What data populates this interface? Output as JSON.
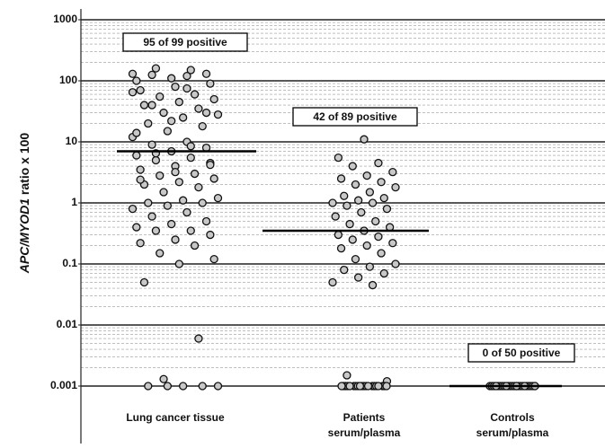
{
  "chart_data": {
    "type": "strip",
    "y_label": [
      "APC/MYOD1",
      "ratio x 100"
    ],
    "categories": [
      [
        "Lung cancer tissue"
      ],
      [
        "Patients",
        "serum/plasma"
      ],
      [
        "Controls",
        "serum/plasma"
      ]
    ],
    "annotations": [
      "95 of 99 positive",
      "42 of 89 positive",
      "0 of 50 positive"
    ],
    "log_y": true,
    "grid": true,
    "minor_grid": true,
    "ylim": [
      0.001,
      1000
    ],
    "yticks": [
      0.001,
      0.01,
      0.1,
      1,
      10,
      100,
      1000
    ],
    "marker_color": "#c8c8c8",
    "medians": [
      7,
      0.35,
      0.001
    ],
    "points": [
      [
        130,
        120,
        125,
        130,
        110,
        100,
        150,
        160,
        90,
        80,
        70,
        60,
        55,
        50,
        45,
        40,
        35,
        30,
        28,
        25,
        20,
        18,
        15,
        12,
        10,
        9,
        8,
        7,
        6,
        5.5,
        5,
        4.5,
        4,
        3.5,
        3,
        2.8,
        2.5,
        2.2,
        2,
        1.8,
        1.5,
        1.2,
        1.1,
        1,
        1,
        0.9,
        0.8,
        0.7,
        0.6,
        0.5,
        0.45,
        0.4,
        0.35,
        0.35,
        0.3,
        0.25,
        0.22,
        0.2,
        0.15,
        0.12,
        0.1,
        0.05,
        0.006,
        0.0013,
        0.001,
        0.001,
        0.001,
        0.001,
        0.001,
        65,
        75,
        40,
        30,
        22,
        14,
        8.5,
        6.5,
        4.2,
        3.2,
        2.4
      ],
      [
        11,
        5.5,
        4.5,
        4,
        3.2,
        2.8,
        2.5,
        2.2,
        2,
        1.8,
        1.5,
        1.3,
        1.2,
        1.1,
        1,
        1,
        0.9,
        0.8,
        0.7,
        0.6,
        0.5,
        0.45,
        0.4,
        0.35,
        0.3,
        0.28,
        0.25,
        0.22,
        0.2,
        0.18,
        0.15,
        0.12,
        0.1,
        0.09,
        0.08,
        0.07,
        0.06,
        0.05,
        0.045,
        0.0015,
        0.0012,
        0.001,
        0.001,
        0.001,
        0.001,
        0.001,
        0.001,
        0.001,
        0.001,
        0.001,
        0.001,
        0.001,
        0.001,
        0.001,
        0.001,
        0.001,
        0.001,
        0.001,
        0.001,
        0.001,
        0.001
      ],
      [
        0.001,
        0.001,
        0.001,
        0.001,
        0.001,
        0.001,
        0.001,
        0.001,
        0.001,
        0.001,
        0.001,
        0.001,
        0.001,
        0.001,
        0.001,
        0.001,
        0.001,
        0.001,
        0.001,
        0.001,
        0.001,
        0.001,
        0.001,
        0.001,
        0.001
      ]
    ]
  }
}
